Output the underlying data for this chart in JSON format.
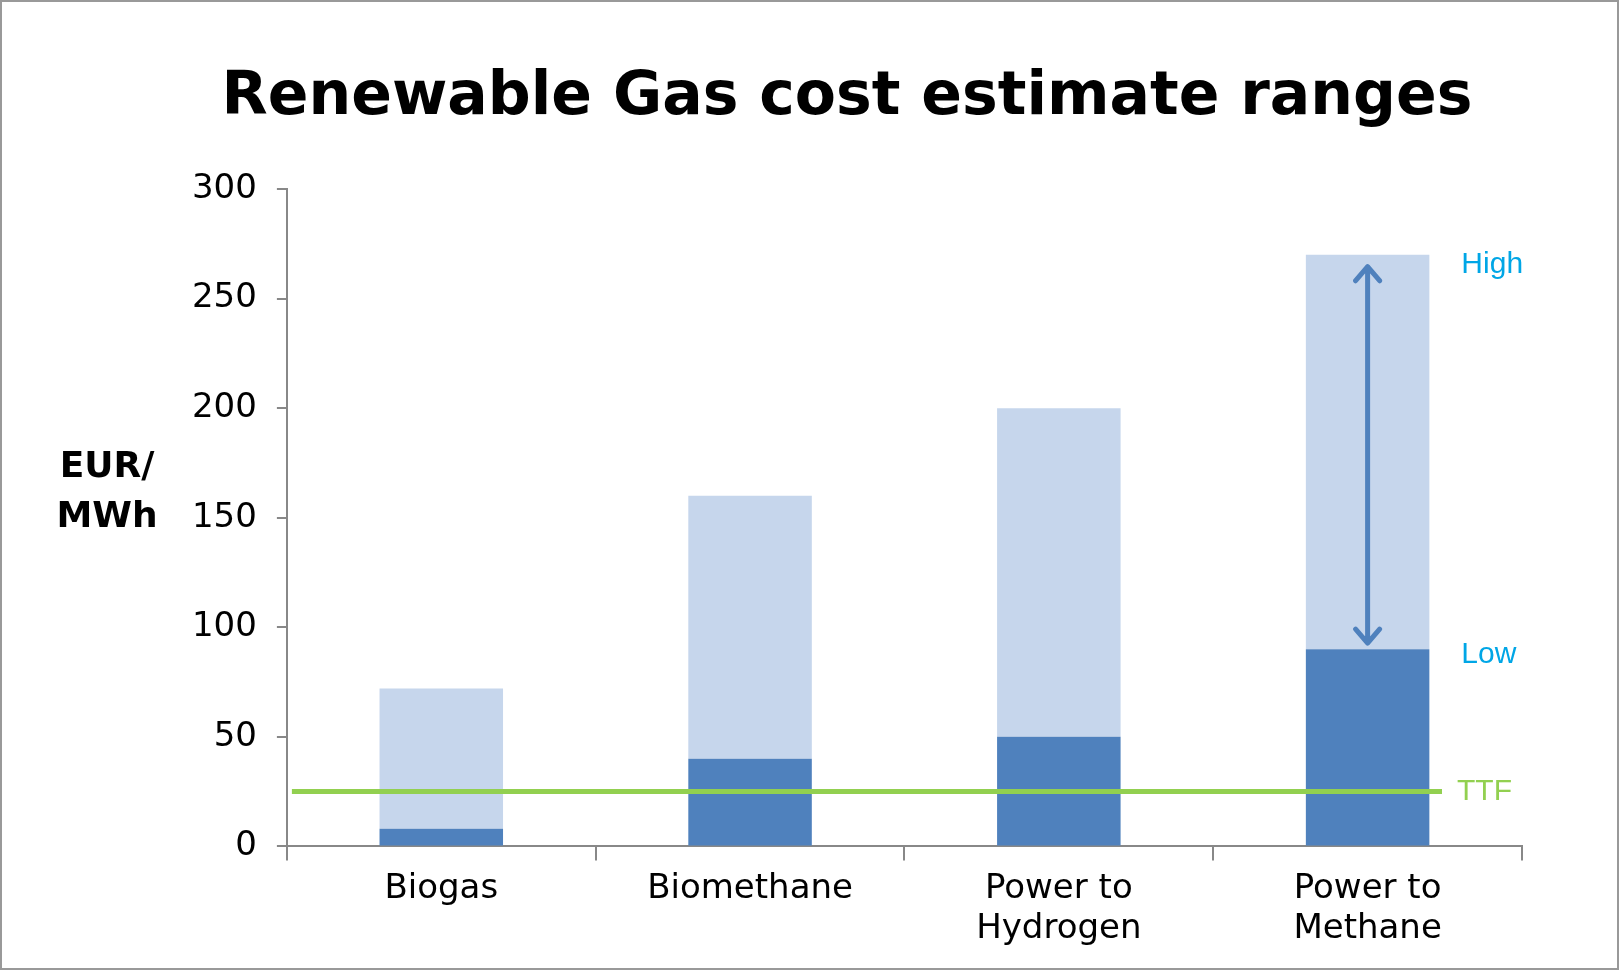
{
  "chart_data": {
    "type": "bar",
    "title": "Renewable Gas cost estimate ranges",
    "ylabel": "EUR/ MWh",
    "categories": [
      "Biogas",
      "Biomethane",
      "Power to\nHydrogen",
      "Power to\nMethane"
    ],
    "stacked": true,
    "series": [
      {
        "color": "#4f81bd",
        "values": [
          8,
          40,
          50,
          90
        ]
      },
      {
        "color": "#c6d6ec",
        "values": [
          64,
          120,
          150,
          180
        ]
      }
    ],
    "ylim": [
      0,
      300
    ],
    "yticks": [
      0,
      50,
      100,
      150,
      200,
      250,
      300
    ],
    "grid": false,
    "legend": false,
    "ref_lines": [
      {
        "axis": "y",
        "value": 25,
        "label": "TTF",
        "color": "#92d050"
      }
    ],
    "annotations": [
      "High",
      "Low"
    ]
  }
}
